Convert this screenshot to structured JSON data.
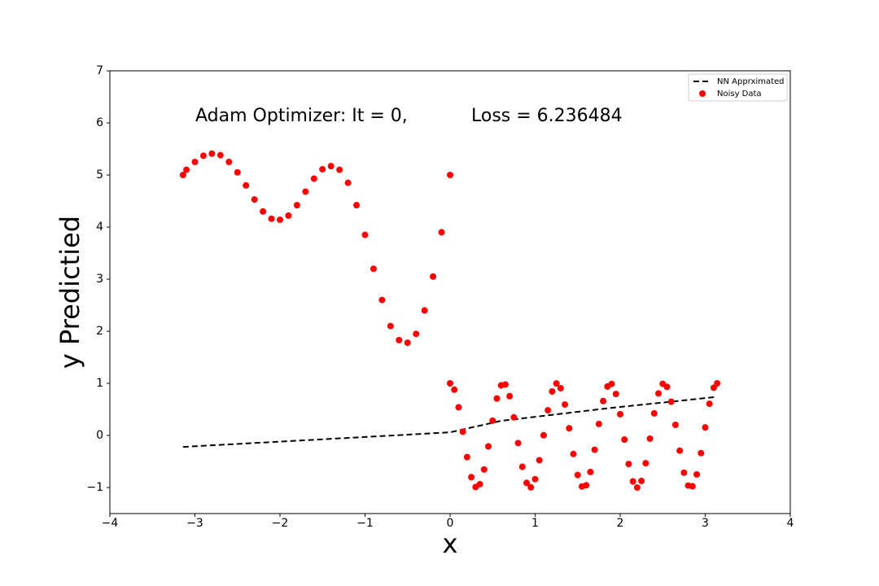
{
  "chart_data": {
    "type": "line",
    "annotations": [
      "Adam Optimizer: It = 0,",
      "Loss = 6.236484"
    ],
    "xlabel": "x",
    "ylabel": "y Predictied",
    "xlim": [
      -4,
      4
    ],
    "ylim": [
      -1.5,
      7
    ],
    "xticks": [
      {
        "value": -4,
        "label": "−4"
      },
      {
        "value": -3,
        "label": "−3"
      },
      {
        "value": -2,
        "label": "−2"
      },
      {
        "value": -1,
        "label": "−1"
      },
      0,
      1,
      2,
      3,
      4
    ],
    "yticks": [
      {
        "value": -1,
        "label": "−1"
      },
      0,
      1,
      2,
      3,
      4,
      5,
      6,
      7
    ],
    "legend": "upper right",
    "series": [
      {
        "name": "NN Apprximated",
        "type": "line",
        "color": "#000000",
        "dashed": true,
        "x": [
          -3.14,
          -1,
          0,
          0.6,
          1.9,
          3.14
        ],
        "values": [
          -0.22,
          -0.03,
          0.06,
          0.28,
          0.53,
          0.74
        ]
      },
      {
        "name": "Noisy Data",
        "type": "scatter",
        "color": "#ff0000",
        "x": [
          -3.14,
          -3.1,
          -3.0,
          -2.9,
          -2.8,
          -2.7,
          -2.6,
          -2.5,
          -2.4,
          -2.3,
          -2.2,
          -2.1,
          -2.0,
          -1.9,
          -1.8,
          -1.7,
          -1.6,
          -1.5,
          -1.4,
          -1.3,
          -1.2,
          -1.1,
          -1.0,
          -0.9,
          -0.8,
          -0.7,
          -0.6,
          -0.5,
          -0.4,
          -0.3,
          -0.2,
          -0.1,
          0,
          0,
          0.05,
          0.1,
          0.15,
          0.2,
          0.25,
          0.3,
          0.35,
          0.4,
          0.45,
          0.5,
          0.55,
          0.6,
          0.65,
          0.7,
          0.75,
          0.8,
          0.85,
          0.9,
          0.95,
          1,
          1.05,
          1.1,
          1.15,
          1.2,
          1.25,
          1.3,
          1.35,
          1.4,
          1.45,
          1.5,
          1.55,
          1.6,
          1.65,
          1.7,
          1.75,
          1.8,
          1.85,
          1.9,
          1.95,
          2,
          2.05,
          2.1,
          2.15,
          2.2,
          2.25,
          2.3,
          2.35,
          2.4,
          2.45,
          2.5,
          2.55,
          2.6,
          2.65,
          2.7,
          2.75,
          2.8,
          2.85,
          2.9,
          2.95,
          3,
          3.05,
          3.1,
          3.14
        ],
        "values": [
          5.0,
          5.1,
          5.25,
          5.37,
          5.41,
          5.38,
          5.25,
          5.05,
          4.8,
          4.53,
          4.3,
          4.16,
          4.14,
          4.22,
          4.42,
          4.68,
          4.93,
          5.11,
          5.17,
          5.1,
          4.85,
          4.42,
          3.85,
          3.2,
          2.6,
          2.1,
          1.83,
          1.78,
          1.95,
          2.4,
          3.05,
          3.9,
          5.0,
          1,
          0.878,
          0.54,
          0.071,
          -0.416,
          -0.801,
          -0.99,
          -0.936,
          -0.654,
          -0.211,
          0.284,
          0.709,
          0.96,
          0.977,
          0.754,
          0.347,
          -0.146,
          -0.602,
          -0.911,
          -0.997,
          -0.839,
          -0.476,
          0.004,
          0.483,
          0.844,
          0.998,
          0.907,
          0.594,
          0.137,
          -0.356,
          -0.76,
          -0.98,
          -0.958,
          -0.702,
          -0.275,
          0.22,
          0.66,
          0.939,
          0.989,
          0.795,
          0.408,
          -0.08,
          -0.548,
          -0.883,
          -1.0,
          -0.873,
          -0.533,
          -0.062,
          0.424,
          0.806,
          0.991,
          0.933,
          0.647,
          0.203,
          -0.292,
          -0.715,
          -0.962,
          -0.975,
          -0.748,
          -0.339,
          0.154,
          0.608,
          0.915,
          1.0
        ]
      }
    ]
  }
}
